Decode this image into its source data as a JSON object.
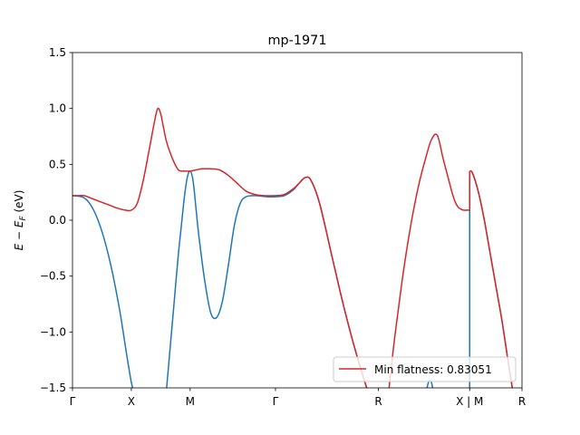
{
  "chart_data": {
    "type": "line",
    "title": "mp-1971",
    "xlabel": "",
    "ylabel": "E − E_F (eV)",
    "ylabel_parts": {
      "base": "E − E",
      "sub": "F",
      "unit": " (eV)"
    },
    "ylim": [
      -1.5,
      1.5
    ],
    "xlim": [
      0,
      7.64
    ],
    "yticks": [
      {
        "value": 1.5,
        "label": "1.5"
      },
      {
        "value": 1.0,
        "label": "1.0"
      },
      {
        "value": 0.5,
        "label": "0.5"
      },
      {
        "value": 0.0,
        "label": "0.0"
      },
      {
        "value": -0.5,
        "label": "−0.5"
      },
      {
        "value": -1.0,
        "label": "−1.0"
      },
      {
        "value": -1.5,
        "label": "−1.5"
      }
    ],
    "xticks": [
      {
        "value": 0.0,
        "label": "Γ"
      },
      {
        "value": 1.0,
        "label": "X"
      },
      {
        "value": 2.0,
        "label": "M"
      },
      {
        "value": 3.45,
        "label": "Γ"
      },
      {
        "value": 5.2,
        "label": "R"
      },
      {
        "value": 6.75,
        "label": "X | M"
      },
      {
        "value": 7.64,
        "label": "R"
      }
    ],
    "legend": {
      "label": "Min flatness: 0.83051",
      "location": "lower right"
    },
    "series": [
      {
        "name": "band-blue",
        "color": "#1f77b4",
        "segments": [
          {
            "x": [
              0.0,
              0.2,
              0.35,
              0.5,
              0.65,
              0.8,
              0.92,
              1.0,
              1.05,
              1.1,
              1.15,
              1.2,
              1.25
            ],
            "y": [
              0.22,
              0.2,
              0.1,
              -0.1,
              -0.4,
              -0.8,
              -1.2,
              -1.45,
              -1.55,
              -1.65,
              -1.75,
              -1.85,
              -1.95
            ]
          },
          {
            "x": [
              1.48,
              1.55,
              1.6,
              1.65,
              1.7,
              1.75,
              1.8,
              1.85,
              1.9,
              1.95,
              2.0,
              2.05,
              2.1,
              2.15,
              2.25,
              2.35,
              2.45,
              2.55,
              2.65,
              2.75,
              2.85,
              2.95,
              3.1,
              3.3,
              3.45,
              3.6,
              3.75,
              3.85,
              3.95,
              4.05,
              4.2,
              4.4,
              4.6,
              4.8,
              5.0,
              5.2,
              5.3
            ],
            "y": [
              -1.95,
              -1.75,
              -1.5,
              -1.2,
              -0.9,
              -0.6,
              -0.3,
              -0.05,
              0.2,
              0.38,
              0.44,
              0.35,
              0.1,
              -0.15,
              -0.55,
              -0.83,
              -0.87,
              -0.72,
              -0.4,
              -0.05,
              0.15,
              0.21,
              0.22,
              0.21,
              0.21,
              0.22,
              0.27,
              0.33,
              0.38,
              0.36,
              0.15,
              -0.3,
              -0.75,
              -1.15,
              -1.5,
              -1.8,
              -1.95
            ]
          },
          {
            "x": [
              5.95,
              6.0,
              6.05,
              6.1,
              6.15,
              6.2,
              6.25
            ],
            "y": [
              -1.95,
              -1.6,
              -1.45,
              -1.45,
              -1.6,
              -1.8,
              -1.95
            ]
          },
          {
            "x": [
              6.75,
              6.75
            ],
            "y": [
              -1.95,
              0.4
            ]
          },
          {
            "x": [
              6.75,
              6.8,
              6.9,
              7.0,
              7.1,
              7.2,
              7.3,
              7.4,
              7.5,
              7.55
            ],
            "y": [
              0.44,
              0.42,
              0.25,
              0.0,
              -0.3,
              -0.6,
              -0.9,
              -1.25,
              -1.6,
              -1.95
            ]
          }
        ]
      },
      {
        "name": "band-red",
        "color": "#d62728",
        "segments": [
          {
            "x": [
              0.0,
              0.1,
              0.2,
              0.3,
              0.45,
              0.6,
              0.75,
              0.9,
              1.0,
              1.1,
              1.2,
              1.3,
              1.4,
              1.45,
              1.5,
              1.55,
              1.6,
              1.7,
              1.8,
              1.9,
              2.0,
              2.1,
              2.2,
              2.35,
              2.5,
              2.65,
              2.8,
              2.95,
              3.1,
              3.25,
              3.45,
              3.6,
              3.75,
              3.85,
              3.95,
              4.05,
              4.2,
              4.4,
              4.6,
              4.8,
              5.0,
              5.2,
              5.3
            ],
            "y": [
              0.22,
              0.22,
              0.22,
              0.2,
              0.17,
              0.14,
              0.11,
              0.09,
              0.09,
              0.15,
              0.35,
              0.62,
              0.9,
              1.0,
              0.95,
              0.82,
              0.7,
              0.55,
              0.45,
              0.44,
              0.44,
              0.45,
              0.46,
              0.46,
              0.45,
              0.4,
              0.33,
              0.26,
              0.23,
              0.22,
              0.22,
              0.23,
              0.28,
              0.33,
              0.38,
              0.36,
              0.15,
              -0.3,
              -0.75,
              -1.15,
              -1.5,
              -1.8,
              -1.95
            ]
          },
          {
            "x": [
              5.3,
              5.35,
              5.4,
              5.5,
              5.6,
              5.7,
              5.8,
              5.9,
              6.0,
              6.1,
              6.2,
              6.3,
              6.4,
              6.45,
              6.5,
              6.55,
              6.6,
              6.65,
              6.7,
              6.75
            ],
            "y": [
              -1.95,
              -1.7,
              -1.4,
              -0.95,
              -0.55,
              -0.2,
              0.1,
              0.35,
              0.55,
              0.72,
              0.76,
              0.55,
              0.35,
              0.25,
              0.17,
              0.12,
              0.1,
              0.09,
              0.09,
              0.09
            ]
          },
          {
            "x": [
              6.75,
              6.75
            ],
            "y": [
              0.09,
              0.44
            ]
          },
          {
            "x": [
              6.75,
              6.8,
              6.9,
              7.0,
              7.1,
              7.2,
              7.3,
              7.4,
              7.5,
              7.55
            ],
            "y": [
              0.44,
              0.42,
              0.25,
              0.0,
              -0.3,
              -0.6,
              -0.9,
              -1.25,
              -1.6,
              -1.95
            ]
          }
        ]
      }
    ]
  }
}
